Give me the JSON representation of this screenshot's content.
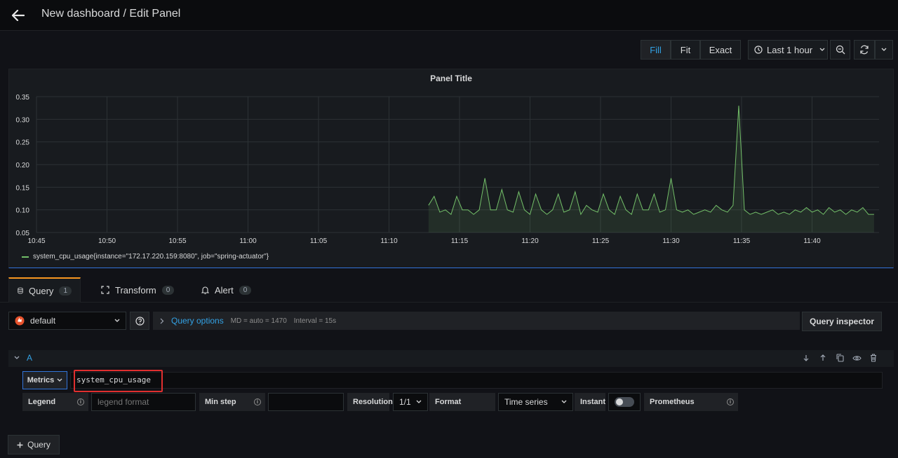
{
  "header": {
    "title": "New dashboard / Edit Panel"
  },
  "toolbar": {
    "fill_label": "Fill",
    "fit_label": "Fit",
    "exact_label": "Exact",
    "time_range": "Last 1 hour"
  },
  "panel": {
    "title": "Panel Title",
    "legend": "system_cpu_usage{instance=\"172.17.220.159:8080\", job=\"spring-actuator\"}"
  },
  "chart_data": {
    "type": "line",
    "title": "Panel Title",
    "x_ticks": [
      "10:45",
      "10:50",
      "10:55",
      "11:00",
      "11:05",
      "11:10",
      "11:15",
      "11:20",
      "11:25",
      "11:30",
      "11:35",
      "11:40"
    ],
    "y_ticks": [
      "0.05",
      "0.10",
      "0.15",
      "0.20",
      "0.25",
      "0.30",
      "0.35"
    ],
    "ylim": [
      0.05,
      0.35
    ],
    "xlim_minutes": [
      0,
      59.5
    ],
    "line_color": "#73bf69",
    "grid": true,
    "legend_placement": "bottom-left",
    "series": [
      {
        "name": "system_cpu_usage{instance=\"172.17.220.159:8080\", job=\"spring-actuator\"}",
        "x_minutes": [
          27.8,
          28.2,
          28.6,
          29.0,
          29.4,
          29.8,
          30.2,
          30.6,
          31.0,
          31.4,
          31.8,
          32.2,
          32.6,
          33.0,
          33.4,
          33.8,
          34.2,
          34.6,
          35.0,
          35.4,
          35.8,
          36.2,
          36.6,
          37.0,
          37.4,
          37.8,
          38.2,
          38.6,
          39.0,
          39.4,
          39.8,
          40.2,
          40.6,
          41.0,
          41.4,
          41.8,
          42.2,
          42.6,
          43.0,
          43.4,
          43.8,
          44.2,
          44.6,
          45.0,
          45.4,
          45.8,
          46.2,
          46.6,
          47.0,
          47.4,
          47.8,
          48.2,
          48.6,
          49.0,
          49.4,
          49.8,
          50.2,
          50.6,
          51.0,
          51.4,
          51.8,
          52.2,
          52.6,
          53.0,
          53.4,
          53.8,
          54.2,
          54.6,
          55.0,
          55.4,
          55.8,
          56.2,
          56.6,
          57.0,
          57.4,
          57.8,
          58.2,
          58.6,
          59.0,
          59.4
        ],
        "values": [
          0.11,
          0.13,
          0.095,
          0.1,
          0.09,
          0.13,
          0.1,
          0.1,
          0.09,
          0.1,
          0.17,
          0.1,
          0.1,
          0.145,
          0.1,
          0.095,
          0.14,
          0.1,
          0.09,
          0.135,
          0.1,
          0.09,
          0.1,
          0.135,
          0.095,
          0.1,
          0.14,
          0.09,
          0.11,
          0.1,
          0.095,
          0.135,
          0.1,
          0.09,
          0.13,
          0.1,
          0.09,
          0.135,
          0.1,
          0.1,
          0.135,
          0.095,
          0.1,
          0.17,
          0.1,
          0.095,
          0.1,
          0.09,
          0.095,
          0.1,
          0.095,
          0.11,
          0.1,
          0.095,
          0.11,
          0.33,
          0.1,
          0.09,
          0.095,
          0.09,
          0.095,
          0.1,
          0.09,
          0.095,
          0.09,
          0.1,
          0.095,
          0.105,
          0.095,
          0.1,
          0.09,
          0.105,
          0.095,
          0.1,
          0.09,
          0.1,
          0.095,
          0.105,
          0.09,
          0.09
        ]
      }
    ]
  },
  "tabs": [
    {
      "label": "Query",
      "count": "1"
    },
    {
      "label": "Transform",
      "count": "0"
    },
    {
      "label": "Alert",
      "count": "0"
    }
  ],
  "query": {
    "datasource": "default",
    "options_label": "Query options",
    "md": "MD = auto = 1470",
    "interval": "Interval = 15s",
    "inspector_label": "Query inspector",
    "ref_id": "A",
    "metrics_label": "Metrics",
    "expression": "system_cpu_usage",
    "legend_label": "Legend",
    "legend_placeholder": "legend format",
    "min_step_label": "Min step",
    "resolution_label": "Resolution",
    "resolution_value": "1/1",
    "format_label": "Format",
    "format_value": "Time series",
    "instant_label": "Instant",
    "prometheus_label": "Prometheus",
    "add_query_label": "Query"
  }
}
